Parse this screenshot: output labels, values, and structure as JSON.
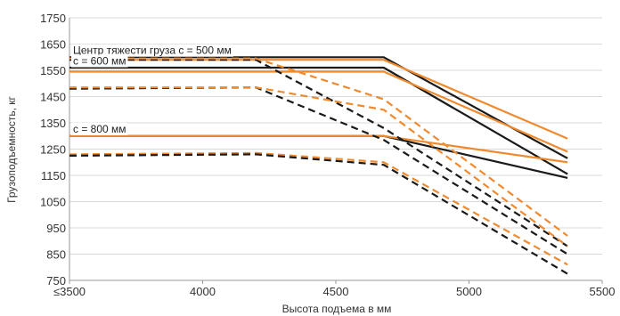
{
  "chart_data": {
    "type": "line",
    "xlabel": "Высота подъема в мм",
    "ylabel": "Грузоподъемность, кг",
    "xlim": [
      3500,
      5500
    ],
    "ylim": [
      750,
      1750
    ],
    "x_ticks": [
      3500,
      4000,
      4500,
      5000,
      5500
    ],
    "x_tick_labels": [
      "≤3500",
      "4000",
      "4500",
      "5000",
      "5500"
    ],
    "y_ticks": [
      750,
      850,
      950,
      1050,
      1150,
      1250,
      1350,
      1450,
      1550,
      1650,
      1750
    ],
    "y_tick_labels": [
      "750",
      "850",
      "950",
      "1050",
      "1150",
      "1250",
      "1350",
      "1450",
      "1550",
      "1650",
      "1750"
    ],
    "grid": {
      "horizontal": true,
      "vertical": false
    },
    "colors": {
      "black": "#1a1a1a",
      "orange": "#ef8a2e",
      "grid": "#d9d9d9"
    },
    "annotations": [
      {
        "text": "Центр тяжести груза c = 500 мм",
        "x": 3500,
        "y": 1612
      },
      {
        "text": "c = 600 мм",
        "x": 3500,
        "y": 1572
      },
      {
        "text": "c = 800 мм",
        "x": 3500,
        "y": 1313
      }
    ],
    "series": [
      {
        "color": "black",
        "style": "solid",
        "points": [
          [
            3500,
            1600
          ],
          [
            4680,
            1600
          ],
          [
            5370,
            1215
          ]
        ]
      },
      {
        "color": "orange",
        "style": "solid",
        "points": [
          [
            3500,
            1590
          ],
          [
            4680,
            1590
          ],
          [
            5370,
            1290
          ]
        ]
      },
      {
        "color": "black",
        "style": "solid",
        "points": [
          [
            3500,
            1560
          ],
          [
            4680,
            1560
          ],
          [
            5370,
            1155
          ]
        ]
      },
      {
        "color": "orange",
        "style": "solid",
        "points": [
          [
            3500,
            1545
          ],
          [
            4680,
            1545
          ],
          [
            5370,
            1240
          ]
        ]
      },
      {
        "color": "black",
        "style": "solid",
        "points": [
          [
            3500,
            1300
          ],
          [
            4680,
            1300
          ],
          [
            5370,
            1140
          ]
        ]
      },
      {
        "color": "orange",
        "style": "solid",
        "points": [
          [
            3500,
            1300
          ],
          [
            4680,
            1300
          ],
          [
            5370,
            1200
          ]
        ]
      },
      {
        "color": "black",
        "style": "dashed",
        "points": [
          [
            3500,
            1590
          ],
          [
            4200,
            1590
          ],
          [
            4680,
            1330
          ],
          [
            5370,
            880
          ]
        ]
      },
      {
        "color": "orange",
        "style": "dashed",
        "points": [
          [
            3500,
            1595
          ],
          [
            4200,
            1595
          ],
          [
            4680,
            1440
          ],
          [
            5370,
            920
          ]
        ]
      },
      {
        "color": "black",
        "style": "dashed",
        "points": [
          [
            3500,
            1480
          ],
          [
            4200,
            1485
          ],
          [
            4680,
            1285
          ],
          [
            5370,
            850
          ]
        ]
      },
      {
        "color": "orange",
        "style": "dashed",
        "points": [
          [
            3500,
            1485
          ],
          [
            4200,
            1485
          ],
          [
            4680,
            1400
          ],
          [
            5370,
            880
          ]
        ]
      },
      {
        "color": "orange",
        "style": "dashed",
        "points": [
          [
            3500,
            1230
          ],
          [
            4200,
            1235
          ],
          [
            4680,
            1200
          ],
          [
            5370,
            810
          ]
        ]
      },
      {
        "color": "black",
        "style": "dashed",
        "points": [
          [
            3500,
            1225
          ],
          [
            4200,
            1230
          ],
          [
            4680,
            1190
          ],
          [
            5370,
            775
          ]
        ]
      }
    ]
  }
}
